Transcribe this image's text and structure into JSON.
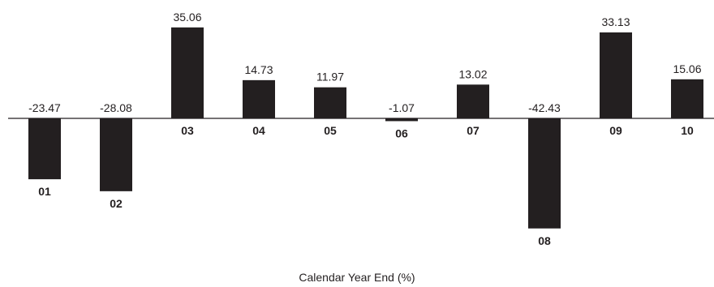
{
  "chart_data": {
    "type": "bar",
    "categories": [
      "01",
      "02",
      "03",
      "04",
      "05",
      "06",
      "07",
      "08",
      "09",
      "10"
    ],
    "series": [
      {
        "values": [
          -23.47,
          -28.08,
          35.06,
          14.73,
          11.97,
          -1.07,
          13.02,
          -42.43,
          33.13,
          15.06
        ]
      }
    ],
    "value_labels": [
      "-23.47",
      "-28.08",
      "35.06",
      "14.73",
      "11.97",
      "-1.07",
      "13.02",
      "-42.43",
      "33.13",
      "15.06"
    ],
    "xlabel": "Calendar Year End (%)",
    "ylabel": "",
    "ylim": [
      -45,
      35.06
    ],
    "grid": false,
    "legend": "none",
    "bar_color": "#231f20",
    "axis_color": "#231f20"
  }
}
